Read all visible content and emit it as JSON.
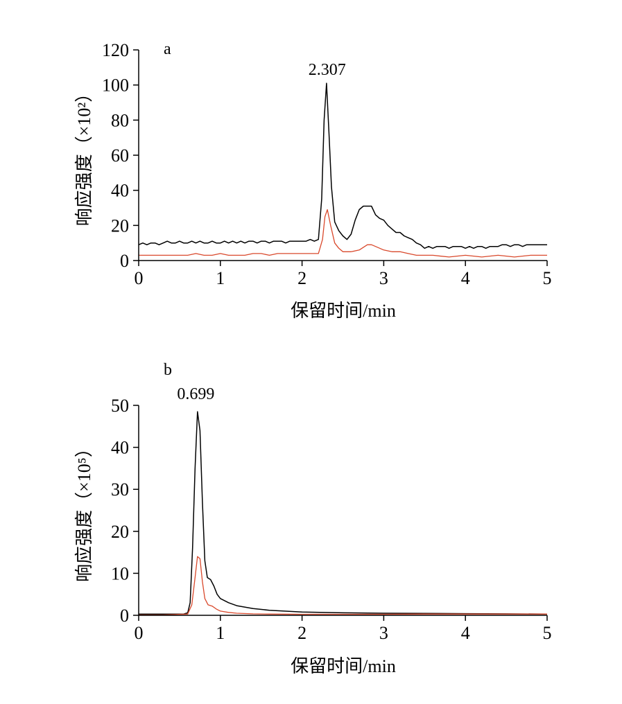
{
  "chart_data": [
    {
      "panel": "a",
      "type": "line",
      "xlabel": "保留时间/min",
      "ylabel": "响应强度（×10²）",
      "xlim": [
        0,
        5
      ],
      "ylim": [
        0,
        120
      ],
      "xticks": [
        0,
        1,
        2,
        3,
        4,
        5
      ],
      "yticks": [
        0,
        20,
        40,
        60,
        80,
        100,
        120
      ],
      "grid": false,
      "legend": "none",
      "annotations": [
        {
          "text": "2.307",
          "x": 2.307,
          "y": 101
        }
      ],
      "series": [
        {
          "color": "#000000",
          "x": [
            0.0,
            0.05,
            0.1,
            0.15,
            0.2,
            0.25,
            0.3,
            0.35,
            0.4,
            0.45,
            0.5,
            0.55,
            0.6,
            0.65,
            0.7,
            0.75,
            0.8,
            0.85,
            0.9,
            0.95,
            1.0,
            1.05,
            1.1,
            1.15,
            1.2,
            1.25,
            1.3,
            1.35,
            1.4,
            1.45,
            1.5,
            1.55,
            1.6,
            1.65,
            1.7,
            1.75,
            1.8,
            1.85,
            1.9,
            1.95,
            2.0,
            2.05,
            2.1,
            2.15,
            2.2,
            2.24,
            2.27,
            2.3,
            2.33,
            2.36,
            2.4,
            2.45,
            2.5,
            2.55,
            2.6,
            2.65,
            2.7,
            2.75,
            2.8,
            2.85,
            2.9,
            2.95,
            3.0,
            3.05,
            3.1,
            3.15,
            3.2,
            3.25,
            3.3,
            3.35,
            3.4,
            3.45,
            3.5,
            3.55,
            3.6,
            3.65,
            3.7,
            3.75,
            3.8,
            3.85,
            3.9,
            3.95,
            4.0,
            4.05,
            4.1,
            4.15,
            4.2,
            4.25,
            4.3,
            4.35,
            4.4,
            4.45,
            4.5,
            4.55,
            4.6,
            4.65,
            4.7,
            4.75,
            4.8,
            4.85,
            4.9,
            4.95,
            5.0
          ],
          "y": [
            9,
            10,
            9,
            10,
            10,
            9,
            10,
            11,
            10,
            10,
            11,
            10,
            10,
            11,
            10,
            11,
            10,
            10,
            11,
            10,
            10,
            11,
            10,
            11,
            10,
            11,
            10,
            11,
            11,
            10,
            11,
            11,
            10,
            11,
            11,
            11,
            10,
            11,
            11,
            11,
            11,
            11,
            12,
            11,
            12,
            35,
            80,
            101,
            72,
            42,
            22,
            17,
            14,
            12,
            15,
            23,
            29,
            31,
            31,
            31,
            26,
            24,
            23,
            20,
            18,
            16,
            16,
            14,
            13,
            12,
            10,
            9,
            7,
            8,
            7,
            8,
            8,
            8,
            7,
            8,
            8,
            8,
            7,
            8,
            7,
            8,
            8,
            7,
            8,
            8,
            8,
            9,
            9,
            8,
            9,
            9,
            8,
            9,
            9,
            9,
            9,
            9,
            9
          ]
        },
        {
          "color": "#d9482b",
          "x": [
            0.0,
            0.1,
            0.2,
            0.3,
            0.4,
            0.5,
            0.6,
            0.7,
            0.8,
            0.9,
            1.0,
            1.1,
            1.2,
            1.3,
            1.4,
            1.5,
            1.6,
            1.7,
            1.8,
            1.9,
            2.0,
            2.1,
            2.2,
            2.25,
            2.28,
            2.31,
            2.35,
            2.4,
            2.45,
            2.5,
            2.6,
            2.7,
            2.8,
            2.85,
            2.9,
            3.0,
            3.1,
            3.2,
            3.3,
            3.4,
            3.5,
            3.6,
            3.8,
            4.0,
            4.2,
            4.4,
            4.6,
            4.8,
            5.0
          ],
          "y": [
            3,
            3,
            3,
            3,
            3,
            3,
            3,
            4,
            3,
            3,
            4,
            3,
            3,
            3,
            4,
            4,
            3,
            4,
            4,
            4,
            4,
            4,
            4,
            12,
            25,
            29,
            20,
            10,
            7,
            5,
            5,
            6,
            9,
            9,
            8,
            6,
            5,
            5,
            4,
            3,
            3,
            3,
            2,
            3,
            2,
            3,
            2,
            3,
            3
          ]
        }
      ]
    },
    {
      "panel": "b",
      "type": "line",
      "xlabel": "保留时间/min",
      "ylabel": "响应强度（×10⁵）",
      "xlim": [
        0,
        5
      ],
      "ylim": [
        0,
        50
      ],
      "xticks": [
        0,
        1,
        2,
        3,
        4,
        5
      ],
      "yticks": [
        0,
        10,
        20,
        30,
        40,
        50
      ],
      "grid": false,
      "legend": "none",
      "annotations": [
        {
          "text": "0.699",
          "x": 0.699,
          "y": 49.5
        }
      ],
      "series": [
        {
          "color": "#000000",
          "x": [
            0.0,
            0.3,
            0.55,
            0.6,
            0.63,
            0.66,
            0.69,
            0.72,
            0.75,
            0.78,
            0.81,
            0.84,
            0.88,
            0.92,
            0.96,
            1.0,
            1.1,
            1.2,
            1.4,
            1.6,
            2.0,
            2.5,
            3.0,
            3.5,
            4.0,
            4.5,
            5.0
          ],
          "y": [
            0.3,
            0.3,
            0.3,
            0.6,
            3.0,
            16.0,
            35.0,
            48.5,
            44.0,
            27.0,
            13.0,
            9.0,
            8.5,
            7.0,
            5.0,
            4.0,
            3.0,
            2.3,
            1.6,
            1.2,
            0.8,
            0.6,
            0.5,
            0.45,
            0.4,
            0.35,
            0.3
          ]
        },
        {
          "color": "#d9482b",
          "x": [
            0.0,
            0.3,
            0.6,
            0.65,
            0.69,
            0.72,
            0.75,
            0.78,
            0.81,
            0.85,
            0.9,
            0.95,
            1.0,
            1.1,
            1.2,
            1.4,
            1.6,
            2.0,
            2.5,
            3.0,
            3.5,
            4.0,
            4.5,
            5.0
          ],
          "y": [
            0.1,
            0.1,
            0.3,
            2.5,
            9.0,
            14.0,
            13.5,
            8.0,
            4.0,
            2.5,
            2.2,
            1.5,
            1.0,
            0.7,
            0.5,
            0.35,
            0.3,
            0.25,
            0.25,
            0.25,
            0.3,
            0.3,
            0.3,
            0.3
          ]
        }
      ]
    }
  ]
}
